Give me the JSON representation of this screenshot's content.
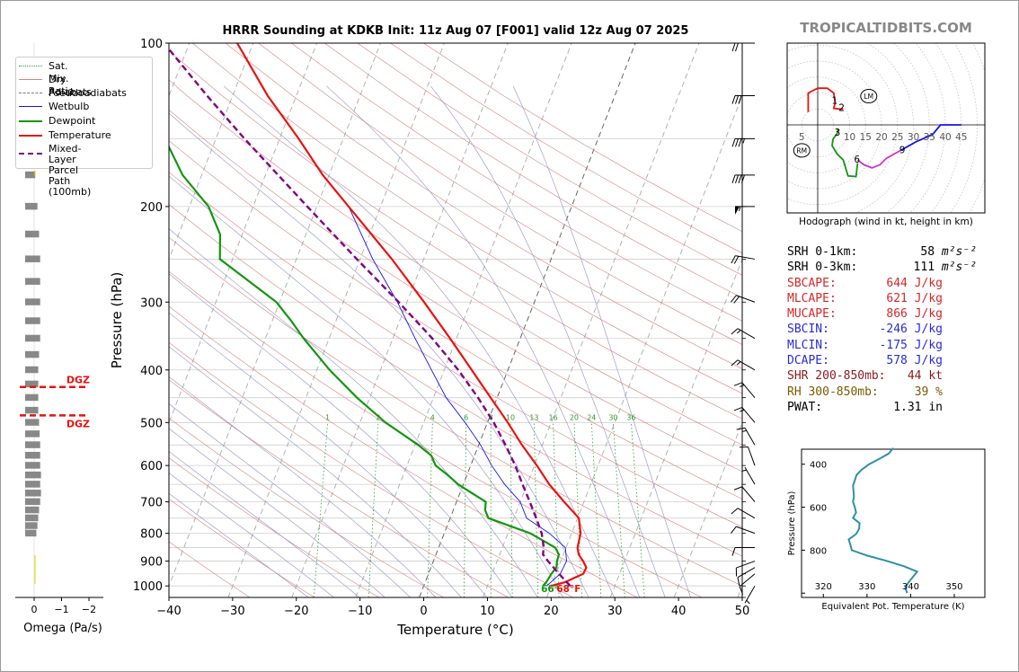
{
  "site": "TROPICALTIDBITS.COM",
  "chart_data": [
    {
      "type": "line",
      "subtype": "skew-t log-p",
      "title": "HRRR Sounding at KDKB Init: 11z Aug 07 [F001] valid 12z Aug 07 2025",
      "xlabel": "Temperature (°C)",
      "ylabel": "Pressure (hPa)",
      "xlim": [
        -40,
        50
      ],
      "ylim": [
        1050,
        100
      ],
      "y_scale": "log",
      "x_ticks": [
        "−40",
        "−30",
        "−20",
        "−10",
        "0",
        "10",
        "20",
        "30",
        "40",
        "50"
      ],
      "y_ticks": [
        "100",
        "200",
        "300",
        "400",
        "500",
        "600",
        "700",
        "800",
        "900",
        "1000"
      ],
      "mixing_ratio_labels": [
        "1",
        "2",
        "4",
        "6",
        "8",
        "10",
        "13",
        "16",
        "20",
        "24",
        "30",
        "36"
      ],
      "surface_label": "68°F",
      "surface_dew_label": "66°",
      "legend": [
        "Sat. Mix. Ratio",
        "Dry Adiabats",
        "Pseudoadiabats",
        "Wetbulb",
        "Dewpoint",
        "Temperature",
        "Mixed-Layer\nParcel Path (100mb)"
      ],
      "colors": {
        "temperature": "#e8130f",
        "dewpoint": "#13960f",
        "wetbulb": "#1414e6",
        "parcel": "#800080",
        "dry_adiabat": "#d98080",
        "moist_adiabat": "#9090c0",
        "mixing_ratio": "#2f9a2f",
        "isotherm": "#999999"
      },
      "series": [
        {
          "name": "Temperature",
          "points": [
            [
              1000,
              20
            ],
            [
              985,
              21.9
            ],
            [
              950,
              24.3
            ],
            [
              925,
              24.4
            ],
            [
              900,
              23.5
            ],
            [
              875,
              22.4
            ],
            [
              850,
              21.8
            ],
            [
              800,
              21.4
            ],
            [
              750,
              20.2
            ],
            [
              700,
              16.9
            ],
            [
              650,
              13.5
            ],
            [
              600,
              10.4
            ],
            [
              550,
              6.8
            ],
            [
              500,
              3.2
            ],
            [
              450,
              -1.0
            ],
            [
              400,
              -5.7
            ],
            [
              350,
              -11.0
            ],
            [
              300,
              -17.3
            ],
            [
              250,
              -25.0
            ],
            [
              200,
              -35.0
            ],
            [
              175,
              -41.0
            ],
            [
              150,
              -47.0
            ],
            [
              125,
              -54.5
            ],
            [
              100,
              -62.5
            ]
          ]
        },
        {
          "name": "Dewpoint",
          "points": [
            [
              1000,
              18.7
            ],
            [
              985,
              19.0
            ],
            [
              950,
              19.3
            ],
            [
              925,
              19.7
            ],
            [
              900,
              19.4
            ],
            [
              875,
              19.3
            ],
            [
              850,
              18.3
            ],
            [
              800,
              13.5
            ],
            [
              750,
              6.0
            ],
            [
              725,
              5.0
            ],
            [
              700,
              4.6
            ],
            [
              650,
              -0.8
            ],
            [
              625,
              -3.0
            ],
            [
              600,
              -5.5
            ],
            [
              575,
              -6.8
            ],
            [
              550,
              -9.5
            ],
            [
              500,
              -16.0
            ],
            [
              450,
              -22.0
            ],
            [
              400,
              -28.0
            ],
            [
              350,
              -34.0
            ],
            [
              325,
              -37.0
            ],
            [
              300,
              -40.5
            ],
            [
              275,
              -46.0
            ],
            [
              250,
              -52.0
            ],
            [
              225,
              -53.5
            ],
            [
              200,
              -57.0
            ],
            [
              175,
              -63.0
            ],
            [
              150,
              -68.0
            ],
            [
              125,
              -75.5
            ],
            [
              100,
              -83.0
            ]
          ]
        },
        {
          "name": "Wetbulb",
          "points": [
            [
              1000,
              19.3
            ],
            [
              950,
              20.7
            ],
            [
              900,
              20.9
            ],
            [
              850,
              19.9
            ],
            [
              800,
              16.5
            ],
            [
              750,
              12.0
            ],
            [
              700,
              10.0
            ],
            [
              650,
              6.5
            ],
            [
              600,
              3.3
            ],
            [
              550,
              0.3
            ],
            [
              500,
              -3.5
            ],
            [
              450,
              -8.0
            ],
            [
              400,
              -12.0
            ],
            [
              350,
              -16.5
            ],
            [
              300,
              -21.5
            ],
            [
              250,
              -28.0
            ],
            [
              200,
              -35.0
            ]
          ]
        },
        {
          "name": "Mixed-Layer\nParcel Path (100mb)",
          "points": [
            [
              1000,
              23.0
            ],
            [
              950,
              20.5
            ],
            [
              900,
              18.0
            ],
            [
              875,
              16.8
            ],
            [
              850,
              16.5
            ],
            [
              800,
              15.3
            ],
            [
              750,
              13.5
            ],
            [
              700,
              11.5
            ],
            [
              650,
              9.3
            ],
            [
              600,
              7.0
            ],
            [
              550,
              4.2
            ],
            [
              500,
              1.0
            ],
            [
              450,
              -3.0
            ],
            [
              400,
              -7.8
            ],
            [
              350,
              -13.8
            ],
            [
              300,
              -21.3
            ],
            [
              250,
              -30.5
            ],
            [
              200,
              -41.5
            ],
            [
              175,
              -48.0
            ],
            [
              150,
              -55.5
            ],
            [
              125,
              -64.0
            ],
            [
              100,
              -74.0
            ]
          ]
        }
      ]
    },
    {
      "type": "bar",
      "title": "",
      "xlabel": "Omega (Pa/s)",
      "x_ticks": [
        "0",
        "−1",
        "−2"
      ],
      "xlim": [
        0.2,
        -2.2
      ],
      "dgz_label": "DGZ",
      "dgz_pressures": [
        430,
        485
      ],
      "pressure": [
        1000,
        975,
        950,
        925,
        900,
        875,
        850,
        825,
        800,
        775,
        750,
        725,
        700,
        675,
        650,
        625,
        600,
        575,
        550,
        525,
        500,
        475,
        450,
        425,
        400,
        375,
        350,
        325,
        300,
        275,
        250,
        225,
        200,
        175,
        150,
        125,
        100
      ],
      "values": [
        0.0,
        0.0,
        0.0,
        0.0,
        0.0,
        0.0,
        0.0,
        0.0,
        -0.08,
        -0.12,
        -0.15,
        -0.18,
        -0.22,
        -0.25,
        -0.22,
        -0.25,
        -0.22,
        -0.22,
        -0.22,
        -0.2,
        -0.18,
        -0.15,
        -0.15,
        -0.15,
        -0.15,
        -0.18,
        -0.22,
        -0.22,
        -0.22,
        -0.22,
        -0.22,
        -0.18,
        -0.12,
        -0.04,
        -0.01,
        -0.01,
        0.0
      ],
      "bar_color": "#888888"
    },
    {
      "type": "line",
      "subtype": "hodograph",
      "title": "",
      "caption": "Hodograph (wind in kt, height in km)",
      "ring_labels": [
        "5",
        "10",
        "15",
        "20",
        "25",
        "30",
        "35",
        "40",
        "45"
      ],
      "height_labels": [
        "1",
        "2",
        "3",
        "6",
        "9"
      ],
      "markers": [
        "RM",
        "LM"
      ],
      "lm": [
        16,
        9
      ],
      "rm": [
        -5,
        -8
      ],
      "segments": [
        {
          "km": "0-1",
          "color": "#e8130f",
          "points": [
            [
              -3,
              4
            ],
            [
              -3,
              10
            ],
            [
              0,
              11.5
            ],
            [
              3,
              11.5
            ],
            [
              5,
              10
            ],
            [
              5.5,
              7
            ]
          ]
        },
        {
          "km": "1-3",
          "color": "#e8130f",
          "points": [
            [
              5.5,
              7
            ],
            [
              5,
              5.2
            ],
            [
              6.5,
              5
            ],
            [
              8,
              5
            ]
          ]
        },
        {
          "km": "3-6",
          "color": "#13960f",
          "points": [
            [
              6.3,
              -1.2
            ],
            [
              6.2,
              -2.5
            ],
            [
              4.8,
              -4.5
            ],
            [
              4.5,
              -6.5
            ],
            [
              6,
              -9
            ],
            [
              8,
              -11
            ],
            [
              9.5,
              -16
            ],
            [
              12,
              -16.2
            ],
            [
              12.5,
              -12
            ]
          ]
        },
        {
          "km": "6-9",
          "color": "#cc33cc",
          "points": [
            [
              12.5,
              -11
            ],
            [
              14.5,
              -12.5
            ],
            [
              17,
              -13.5
            ],
            [
              19.5,
              -12.5
            ],
            [
              21.5,
              -10.5
            ],
            [
              26,
              -8
            ]
          ]
        },
        {
          "km": "9-12",
          "color": "#1414e6",
          "points": [
            [
              26,
              -8
            ],
            [
              31,
              -5.2
            ],
            [
              36,
              -3
            ],
            [
              38.5,
              0
            ],
            [
              45,
              0
            ]
          ]
        }
      ]
    },
    {
      "type": "line",
      "title": "",
      "xlabel": "Equivalent Pot. Temperature (K)",
      "ylabel": "Pressure (hPa)",
      "xlim": [
        315,
        357
      ],
      "ylim": [
        1020,
        330
      ],
      "x_ticks": [
        "320",
        "330",
        "340",
        "350"
      ],
      "y_ticks": [
        "400",
        "600",
        "800"
      ],
      "series": [
        {
          "name": "",
          "color": "#2e8fa8",
          "points": [
            [
              1000,
              339.2
            ],
            [
              975,
              338.8
            ],
            [
              950,
              339.5
            ],
            [
              925,
              340.5
            ],
            [
              900,
              341.5
            ],
            [
              875,
              338.5
            ],
            [
              850,
              334.5
            ],
            [
              825,
              330.0
            ],
            [
              800,
              326.5
            ],
            [
              775,
              326.2
            ],
            [
              750,
              325.8
            ],
            [
              725,
              327.5
            ],
            [
              700,
              328.2
            ],
            [
              675,
              328.3
            ],
            [
              650,
              326.8
            ],
            [
              625,
              327.5
            ],
            [
              600,
              327.2
            ],
            [
              575,
              326.8
            ],
            [
              550,
              327.0
            ],
            [
              500,
              326.8
            ],
            [
              475,
              327.2
            ],
            [
              450,
              327.6
            ],
            [
              425,
              328.8
            ],
            [
              400,
              330.5
            ],
            [
              375,
              332.8
            ],
            [
              350,
              335.0
            ],
            [
              325,
              336.0
            ]
          ]
        }
      ]
    }
  ],
  "params": [
    {
      "label": "SRH 0-1km:",
      "value": "58",
      "unit": "m²s⁻²",
      "color": "#000000"
    },
    {
      "label": "SRH 0-3km:",
      "value": "111",
      "unit": "m²s⁻²",
      "color": "#000000"
    },
    {
      "label": "SBCAPE:",
      "value": "644 J/kg",
      "unit": "",
      "color": "#d62728"
    },
    {
      "label": "MLCAPE:",
      "value": "621 J/kg",
      "unit": "",
      "color": "#d62728"
    },
    {
      "label": "MUCAPE:",
      "value": "866 J/kg",
      "unit": "",
      "color": "#d62728"
    },
    {
      "label": "SBCIN:",
      "value": "-246 J/kg",
      "unit": "",
      "color": "#2a2ad8"
    },
    {
      "label": "MLCIN:",
      "value": "-175 J/kg",
      "unit": "",
      "color": "#2a2ad8"
    },
    {
      "label": "DCAPE:",
      "value": "578 J/kg",
      "unit": "",
      "color": "#2a2ad8"
    },
    {
      "label": "SHR 200-850mb:",
      "value": "44 kt",
      "unit": "",
      "color": "#8b1a1a"
    },
    {
      "label": "RH 300-850mb:",
      "value": "39 %",
      "unit": "",
      "color": "#7a5a00"
    },
    {
      "label": "PWAT:",
      "value": "1.31 in",
      "unit": "",
      "color": "#000000"
    }
  ],
  "barbs": [
    {
      "p": 1000,
      "dir": 210,
      "kt": 5
    },
    {
      "p": 950,
      "dir": 230,
      "kt": 10
    },
    {
      "p": 925,
      "dir": 240,
      "kt": 10
    },
    {
      "p": 900,
      "dir": 250,
      "kt": 10
    },
    {
      "p": 850,
      "dir": 270,
      "kt": 10
    },
    {
      "p": 800,
      "dir": 290,
      "kt": 10
    },
    {
      "p": 750,
      "dir": 300,
      "kt": 10
    },
    {
      "p": 700,
      "dir": 320,
      "kt": 10
    },
    {
      "p": 650,
      "dir": 330,
      "kt": 5
    },
    {
      "p": 600,
      "dir": 340,
      "kt": 10
    },
    {
      "p": 550,
      "dir": 330,
      "kt": 15
    },
    {
      "p": 500,
      "dir": 320,
      "kt": 15
    },
    {
      "p": 450,
      "dir": 320,
      "kt": 15
    },
    {
      "p": 400,
      "dir": 300,
      "kt": 15
    },
    {
      "p": 350,
      "dir": 300,
      "kt": 15
    },
    {
      "p": 300,
      "dir": 290,
      "kt": 20
    },
    {
      "p": 250,
      "dir": 280,
      "kt": 20
    },
    {
      "p": 200,
      "dir": 270,
      "kt": 55
    },
    {
      "p": 175,
      "dir": 270,
      "kt": 40
    },
    {
      "p": 150,
      "dir": 270,
      "kt": 35
    },
    {
      "p": 125,
      "dir": 270,
      "kt": 30
    },
    {
      "p": 100,
      "dir": 270,
      "kt": 20
    }
  ]
}
